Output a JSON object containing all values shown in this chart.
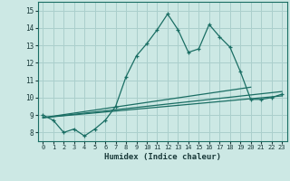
{
  "xlabel": "Humidex (Indice chaleur)",
  "ylabel": "",
  "xlim": [
    -0.5,
    23.5
  ],
  "ylim": [
    7.5,
    15.5
  ],
  "xticks": [
    0,
    1,
    2,
    3,
    4,
    5,
    6,
    7,
    8,
    9,
    10,
    11,
    12,
    13,
    14,
    15,
    16,
    17,
    18,
    19,
    20,
    21,
    22,
    23
  ],
  "yticks": [
    8,
    9,
    10,
    11,
    12,
    13,
    14,
    15
  ],
  "bg_color": "#cce8e4",
  "grid_color": "#aacfcc",
  "line_color": "#1a6e64",
  "line1": {
    "x": [
      0,
      1,
      2,
      3,
      4,
      5,
      6,
      7,
      8,
      9,
      10,
      11,
      12,
      13,
      14,
      15,
      16,
      17,
      18,
      19,
      20,
      21,
      22,
      23
    ],
    "y": [
      9.0,
      8.7,
      8.0,
      8.2,
      7.8,
      8.2,
      8.7,
      9.5,
      11.2,
      12.4,
      13.1,
      13.9,
      14.8,
      13.9,
      12.6,
      12.8,
      14.2,
      13.5,
      12.9,
      11.5,
      9.9,
      9.9,
      10.0,
      10.2
    ]
  },
  "line2": {
    "x": [
      0,
      23
    ],
    "y": [
      8.85,
      10.1
    ]
  },
  "line3": {
    "x": [
      0,
      23
    ],
    "y": [
      8.85,
      10.35
    ]
  },
  "line4": {
    "x": [
      0,
      20
    ],
    "y": [
      8.85,
      10.6
    ]
  }
}
